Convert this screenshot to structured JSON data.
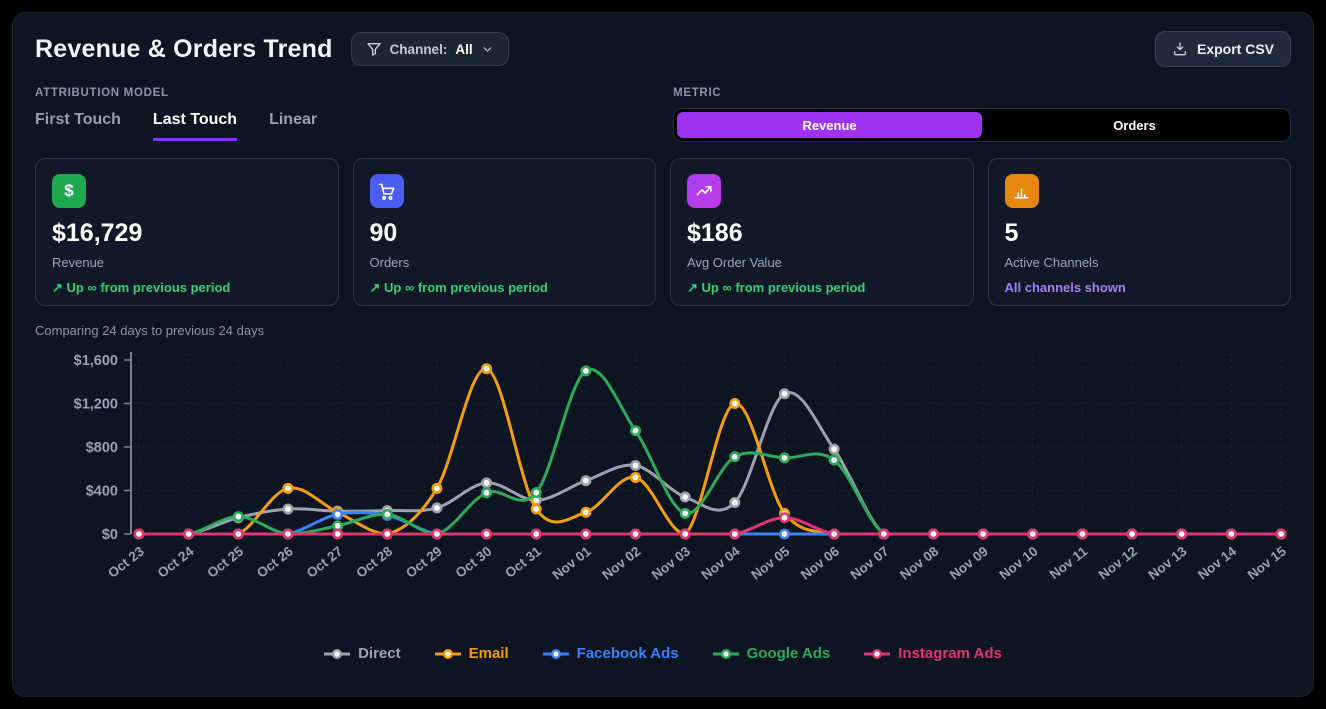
{
  "header": {
    "title": "Revenue & Orders Trend",
    "channel_filter": {
      "icon": "funnel-icon",
      "label": "Channel:",
      "value": "All",
      "chevron": "chevron-down-icon"
    },
    "export_button": {
      "icon": "download-icon",
      "label": "Export CSV"
    }
  },
  "attribution": {
    "section_label": "ATTRIBUTION MODEL",
    "tabs": [
      {
        "label": "First Touch",
        "active": false
      },
      {
        "label": "Last Touch",
        "active": true
      },
      {
        "label": "Linear",
        "active": false
      }
    ],
    "active_underline_color": "#8b2ff5"
  },
  "metric": {
    "section_label": "METRIC",
    "options": [
      {
        "label": "Revenue",
        "active": true
      },
      {
        "label": "Orders",
        "active": false
      }
    ],
    "active_color": "#9d32f0"
  },
  "cards": [
    {
      "icon": "dollar-icon",
      "icon_bg": "#1fa94e",
      "value": "$16,729",
      "label": "Revenue",
      "delta": "↗ Up ∞ from previous period",
      "delta_color": "#35d073"
    },
    {
      "icon": "cart-icon",
      "icon_bg": "#4a5cf2",
      "value": "90",
      "label": "Orders",
      "delta": "↗ Up ∞ from previous period",
      "delta_color": "#35d073"
    },
    {
      "icon": "trend-up-icon",
      "icon_bg": "#b03df0",
      "value": "$186",
      "label": "Avg Order Value",
      "delta": "↗ Up ∞ from previous period",
      "delta_color": "#35d073"
    },
    {
      "icon": "bar-chart-icon",
      "icon_bg": "#e8870e",
      "value": "5",
      "label": "Active Channels",
      "delta": "All channels shown",
      "delta_color": "#a97ef5"
    }
  ],
  "comparison_note": "Comparing 24 days to previous 24 days",
  "chart_data": {
    "type": "line",
    "x": [
      "Oct 23",
      "Oct 24",
      "Oct 25",
      "Oct 26",
      "Oct 27",
      "Oct 28",
      "Oct 29",
      "Oct 30",
      "Oct 31",
      "Nov 01",
      "Nov 02",
      "Nov 03",
      "Nov 04",
      "Nov 05",
      "Nov 06",
      "Nov 07",
      "Nov 08",
      "Nov 09",
      "Nov 10",
      "Nov 11",
      "Nov 12",
      "Nov 13",
      "Nov 14",
      "Nov 15"
    ],
    "ylim": [
      0,
      1600
    ],
    "yticks": [
      {
        "v": 0,
        "label": "$0"
      },
      {
        "v": 400,
        "label": "$400"
      },
      {
        "v": 800,
        "label": "$800"
      },
      {
        "v": 1200,
        "label": "$1,200"
      },
      {
        "v": 1600,
        "label": "$1,600"
      }
    ],
    "grid": true,
    "legend_position": "bottom",
    "series": [
      {
        "name": "Direct",
        "color": "#9ca3af",
        "values": [
          0,
          0,
          150,
          230,
          210,
          215,
          240,
          470,
          310,
          490,
          630,
          340,
          290,
          1290,
          780,
          0,
          0,
          0,
          0,
          0,
          0,
          0,
          0,
          0
        ]
      },
      {
        "name": "Email",
        "color": "#f59e0b",
        "values": [
          0,
          0,
          0,
          420,
          200,
          0,
          420,
          1520,
          230,
          200,
          520,
          0,
          1200,
          190,
          0,
          0,
          0,
          0,
          0,
          0,
          0,
          0,
          0,
          0
        ]
      },
      {
        "name": "Facebook Ads",
        "color": "#3b82f6",
        "values": [
          0,
          0,
          0,
          0,
          180,
          170,
          0,
          0,
          0,
          0,
          0,
          0,
          0,
          0,
          0,
          0,
          0,
          0,
          0,
          0,
          0,
          0,
          0,
          0
        ]
      },
      {
        "name": "Google Ads",
        "color": "#2dab5a",
        "values": [
          0,
          0,
          160,
          0,
          75,
          180,
          0,
          380,
          380,
          1500,
          950,
          190,
          710,
          700,
          680,
          0,
          0,
          0,
          0,
          0,
          0,
          0,
          0,
          0
        ]
      },
      {
        "name": "Instagram Ads",
        "color": "#e0366e",
        "values": [
          0,
          0,
          0,
          0,
          0,
          0,
          0,
          0,
          0,
          0,
          0,
          0,
          0,
          150,
          0,
          0,
          0,
          0,
          0,
          0,
          0,
          0,
          0,
          0
        ]
      }
    ]
  }
}
